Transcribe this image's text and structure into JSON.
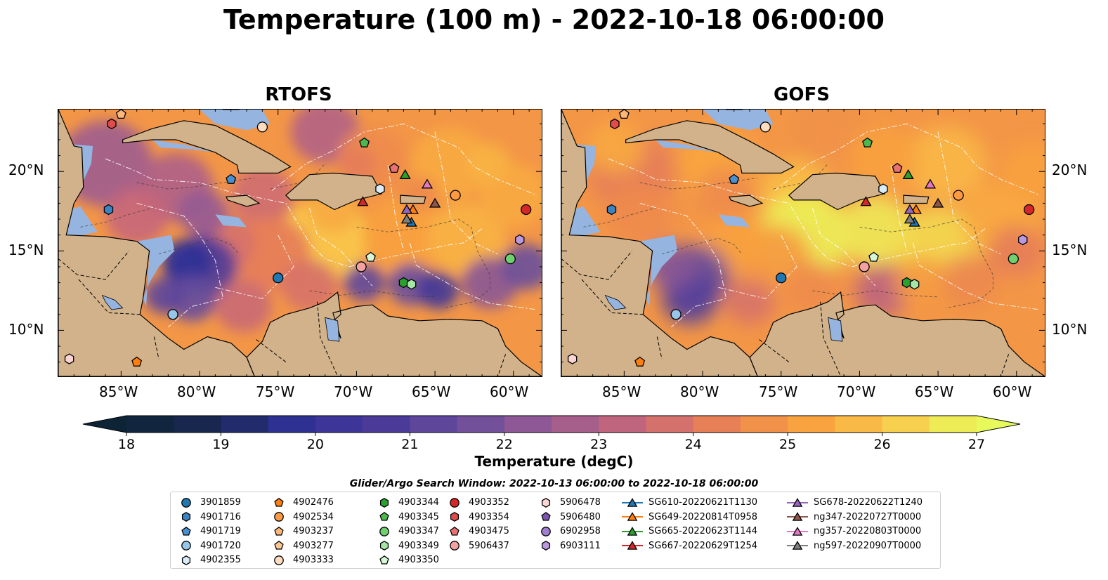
{
  "title": "Temperature (100 m) - 2022-10-18 06:00:00",
  "panels": [
    {
      "title": "RTOFS",
      "variant": "rtofs"
    },
    {
      "title": "GOFS",
      "variant": "gofs"
    }
  ],
  "lon_ticks": [
    "85°W",
    "80°W",
    "75°W",
    "70°W",
    "65°W",
    "60°W"
  ],
  "lat_ticks": [
    "20°N",
    "15°N",
    "10°N"
  ],
  "colorbar": {
    "label": "Temperature (degC)",
    "min": 18,
    "max": 27,
    "step": 0.5,
    "ticks": [
      "18",
      "19",
      "20",
      "21",
      "22",
      "23",
      "24",
      "25",
      "26",
      "27"
    ],
    "extend": "both",
    "colormap": "thermal",
    "stops": [
      "#0d2436",
      "#1a2752",
      "#2f3096",
      "#4a3999",
      "#6a4f9c",
      "#9a5b92",
      "#c6677a",
      "#e98055",
      "#f8a13e",
      "#f9c84b",
      "#e8fa5b"
    ]
  },
  "land_color": "#d1b28a",
  "shelf_color": "#96b4e0",
  "markers_on_map": [
    {
      "id": "3901859",
      "lon": -75.0,
      "lat": 13.3,
      "shape": "circle",
      "color": "#1f77b4"
    },
    {
      "id": "4901716",
      "lon": -85.8,
      "lat": 17.6,
      "shape": "hexagon",
      "color": "#3a84c2"
    },
    {
      "id": "4901719",
      "lon": -78.0,
      "lat": 19.5,
      "shape": "pentagon",
      "color": "#4a90d0"
    },
    {
      "id": "4901720",
      "lon": -81.7,
      "lat": 11.0,
      "shape": "circle",
      "color": "#96c7ea"
    },
    {
      "id": "4902355",
      "lon": -68.5,
      "lat": 18.9,
      "shape": "hexagon",
      "color": "#d9ecf8"
    },
    {
      "id": "4902476",
      "lon": -84.0,
      "lat": 8.0,
      "shape": "pentagon",
      "color": "#ff7f0e"
    },
    {
      "id": "4902534",
      "lon": -63.7,
      "lat": 18.5,
      "shape": "circle",
      "color": "#fd9b44"
    },
    {
      "id": "4903237",
      "lon": -85.0,
      "lat": 23.6,
      "shape": "pentagon",
      "color": "#fdb77a"
    },
    {
      "id": "4903333",
      "lon": -76.0,
      "lat": 22.8,
      "shape": "circle",
      "color": "#fddcc0"
    },
    {
      "id": "4903344",
      "lon": -67.0,
      "lat": 13.0,
      "shape": "hexagon",
      "color": "#2ca02c"
    },
    {
      "id": "4903345",
      "lon": -69.5,
      "lat": 21.8,
      "shape": "pentagon",
      "color": "#4db84d"
    },
    {
      "id": "4903347",
      "lon": -60.2,
      "lat": 14.5,
      "shape": "circle",
      "color": "#6fd06f"
    },
    {
      "id": "4903349",
      "lon": -66.5,
      "lat": 12.9,
      "shape": "hexagon",
      "color": "#a5e5a5"
    },
    {
      "id": "4903350",
      "lon": -69.1,
      "lat": 14.6,
      "shape": "pentagon",
      "color": "#d6f6d6"
    },
    {
      "id": "4903352",
      "lon": -59.2,
      "lat": 17.6,
      "shape": "circle",
      "color": "#d62728"
    },
    {
      "id": "4903354",
      "lon": -85.6,
      "lat": 23.0,
      "shape": "hexagon",
      "color": "#e04b4c"
    },
    {
      "id": "4903475",
      "lon": -67.6,
      "lat": 20.2,
      "shape": "pentagon",
      "color": "#ea7172"
    },
    {
      "id": "5906437",
      "lon": -69.7,
      "lat": 14.0,
      "shape": "circle",
      "color": "#f4a1a1"
    },
    {
      "id": "5906478",
      "lon": -88.3,
      "lat": 8.2,
      "shape": "hexagon",
      "color": "#fbd5d5"
    },
    {
      "id": "6903111",
      "lon": -59.6,
      "lat": 15.7,
      "shape": "hexagon",
      "color": "#b999e0"
    },
    {
      "id": "SG610-20220621T1130",
      "lon": -66.5,
      "lat": 16.8,
      "shape": "triangle",
      "color": "#1f77b4"
    },
    {
      "id": "SG649-20220814T0958",
      "lon": -66.4,
      "lat": 17.6,
      "shape": "triangle",
      "color": "#ff7f0e"
    },
    {
      "id": "SG665-20220623T1144",
      "lon": -66.9,
      "lat": 19.8,
      "shape": "triangle",
      "color": "#2ca02c"
    },
    {
      "id": "SG667-20220629T1254",
      "lon": -69.6,
      "lat": 18.1,
      "shape": "triangle",
      "color": "#d62728"
    },
    {
      "id": "SG678-20220622T1240",
      "lon": -66.8,
      "lat": 17.6,
      "shape": "triangle",
      "color": "#9467bd"
    },
    {
      "id": "ng347-20220727T0000",
      "lon": -65.0,
      "lat": 18.0,
      "shape": "triangle",
      "color": "#8c564b"
    },
    {
      "id": "ng357-20220803T0000",
      "lon": -65.5,
      "lat": 19.2,
      "shape": "triangle",
      "color": "#e377c2"
    },
    {
      "id": "ng597-20220907T0000",
      "lon": -66.8,
      "lat": 17.0,
      "shape": "triangle",
      "color": "#7f7f7f"
    }
  ],
  "legend": {
    "title": "Glider/Argo Search Window: 2022-10-13 06:00:00 to 2022-10-18 06:00:00",
    "columns": [
      [
        {
          "label": "3901859",
          "shape": "circle",
          "color": "#1f77b4"
        },
        {
          "label": "4901716",
          "shape": "hexagon",
          "color": "#3a84c2"
        },
        {
          "label": "4901719",
          "shape": "pentagon",
          "color": "#4a90d0"
        },
        {
          "label": "4901720",
          "shape": "circle",
          "color": "#96c7ea"
        },
        {
          "label": "4902355",
          "shape": "hexagon",
          "color": "#d9ecf8"
        }
      ],
      [
        {
          "label": "4902476",
          "shape": "pentagon",
          "color": "#ff7f0e"
        },
        {
          "label": "4902534",
          "shape": "circle",
          "color": "#fd9b44"
        },
        {
          "label": "4903237",
          "shape": "pentagon",
          "color": "#fdb77a"
        },
        {
          "label": "4903277",
          "shape": "pentagon",
          "color": "#fdc896"
        },
        {
          "label": "4903333",
          "shape": "circle",
          "color": "#fddcc0"
        }
      ],
      [
        {
          "label": "4903344",
          "shape": "hexagon",
          "color": "#2ca02c"
        },
        {
          "label": "4903345",
          "shape": "pentagon",
          "color": "#4db84d"
        },
        {
          "label": "4903347",
          "shape": "circle",
          "color": "#6fd06f"
        },
        {
          "label": "4903349",
          "shape": "hexagon",
          "color": "#a5e5a5"
        },
        {
          "label": "4903350",
          "shape": "pentagon",
          "color": "#d6f6d6"
        }
      ],
      [
        {
          "label": "4903352",
          "shape": "circle",
          "color": "#d62728"
        },
        {
          "label": "4903354",
          "shape": "hexagon",
          "color": "#e04b4c"
        },
        {
          "label": "4903475",
          "shape": "pentagon",
          "color": "#ea7172"
        },
        {
          "label": "5906437",
          "shape": "circle",
          "color": "#f4a1a1"
        }
      ],
      [
        {
          "label": "5906478",
          "shape": "hexagon",
          "color": "#fbd5d5"
        },
        {
          "label": "5906480",
          "shape": "pentagon",
          "color": "#7d55b0"
        },
        {
          "label": "6902958",
          "shape": "circle",
          "color": "#a07fd0"
        },
        {
          "label": "6903111",
          "shape": "hexagon",
          "color": "#b999e0"
        }
      ],
      [
        {
          "label": "SG610-20220621T1130",
          "shape": "triangle-line",
          "color": "#1f77b4"
        },
        {
          "label": "SG649-20220814T0958",
          "shape": "triangle-line",
          "color": "#ff7f0e"
        },
        {
          "label": "SG665-20220623T1144",
          "shape": "triangle-line",
          "color": "#2ca02c"
        },
        {
          "label": "SG667-20220629T1254",
          "shape": "triangle-line",
          "color": "#d62728"
        }
      ],
      [
        {
          "label": "SG678-20220622T1240",
          "shape": "triangle-line",
          "color": "#9467bd"
        },
        {
          "label": "ng347-20220727T0000",
          "shape": "triangle-line",
          "color": "#8c564b"
        },
        {
          "label": "ng357-20220803T0000",
          "shape": "triangle-line",
          "color": "#e377c2"
        },
        {
          "label": "ng597-20220907T0000",
          "shape": "triangle-line",
          "color": "#7f7f7f"
        }
      ]
    ]
  }
}
